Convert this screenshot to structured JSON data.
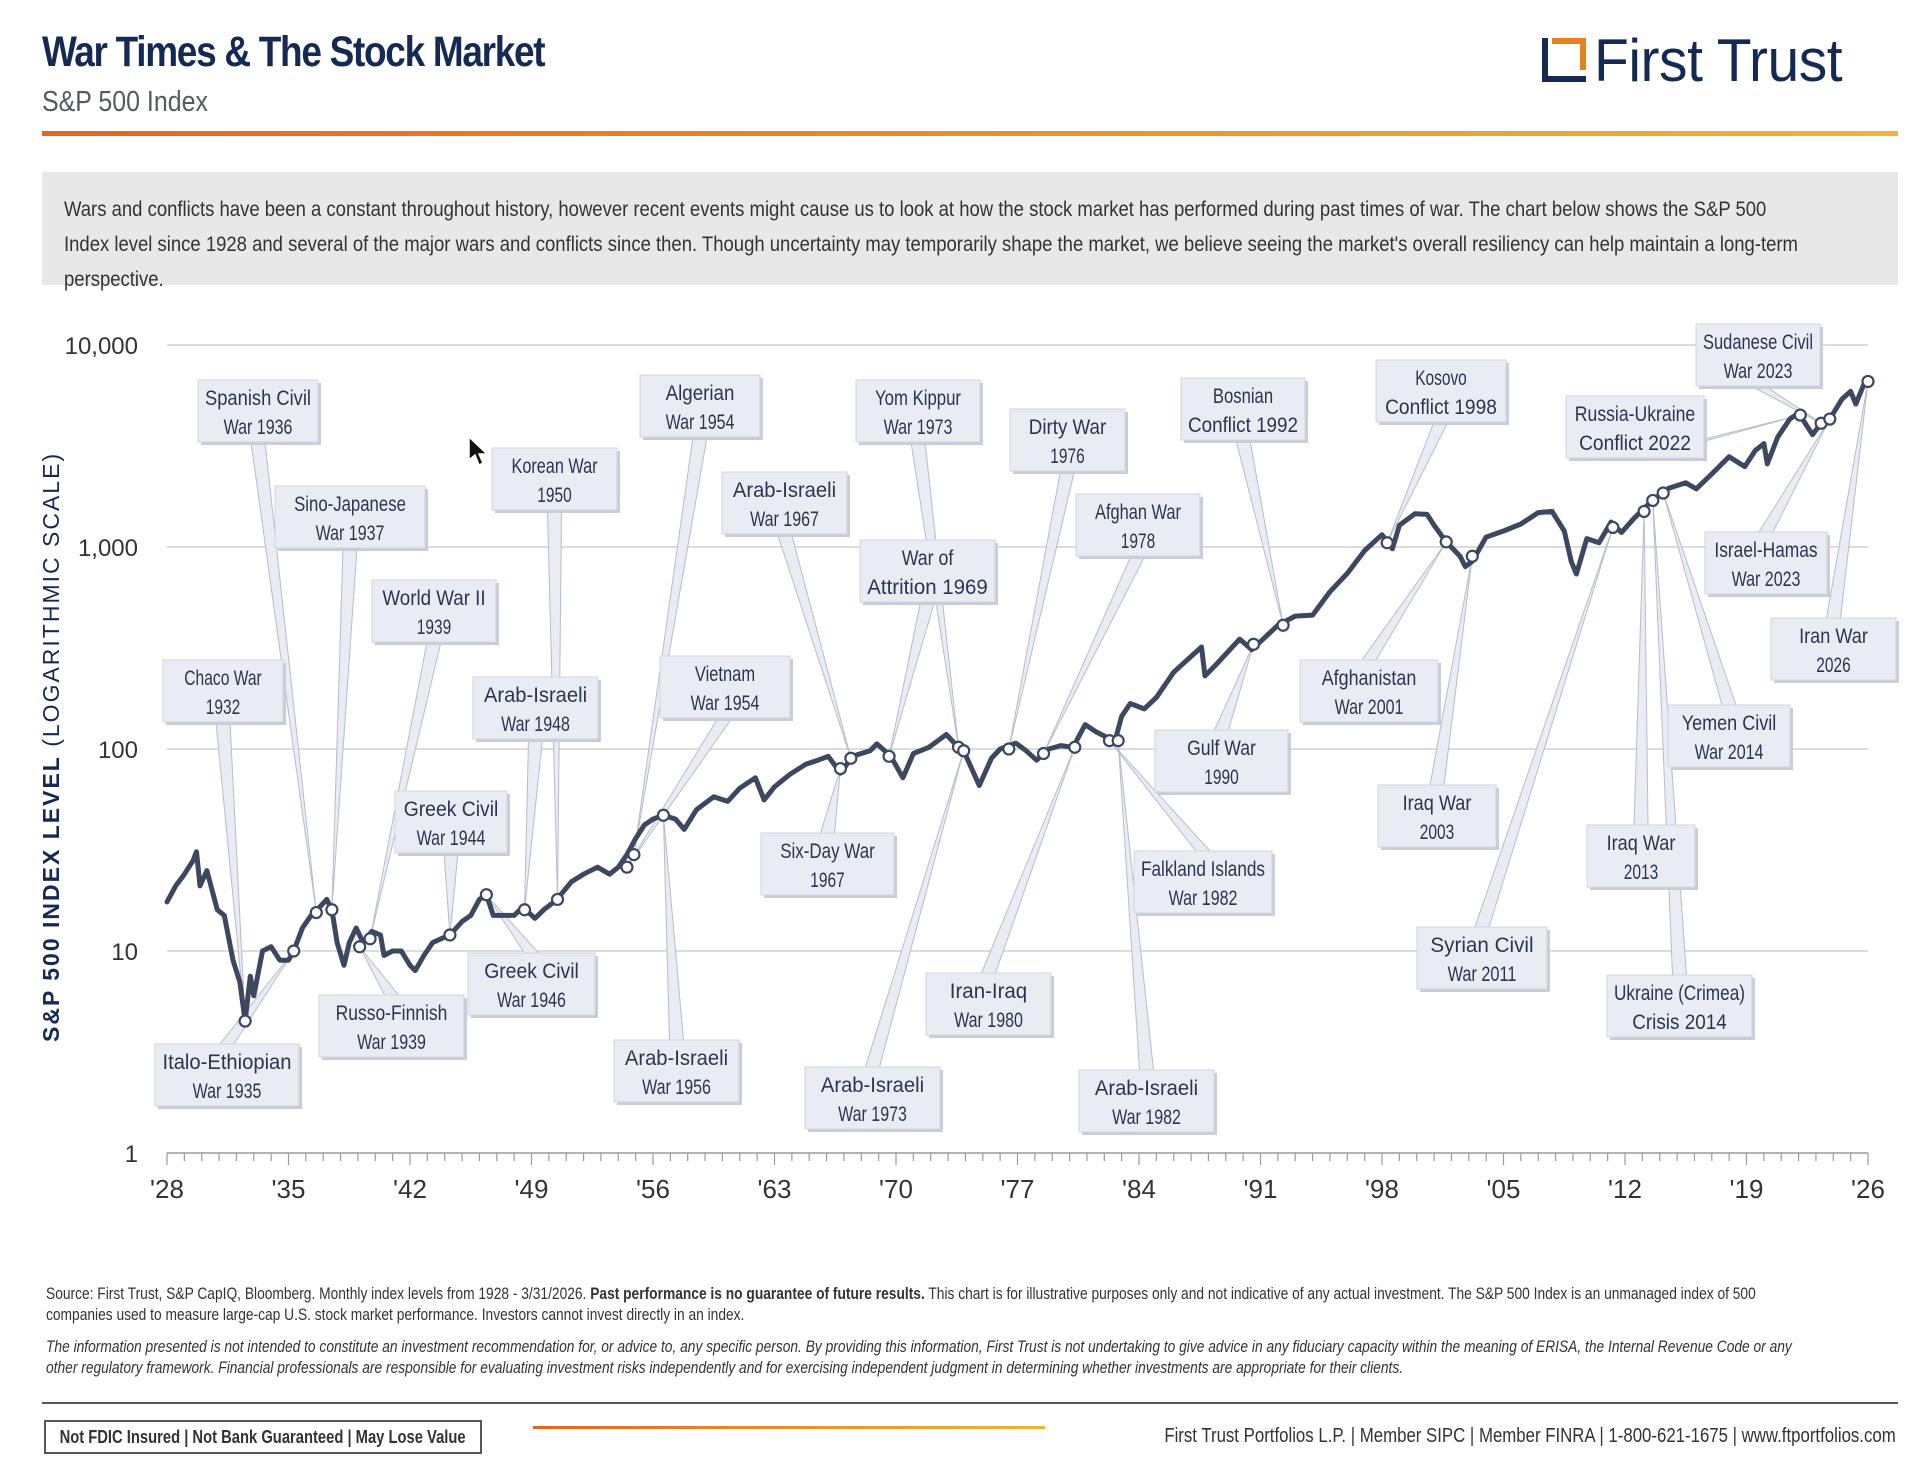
{
  "header": {
    "title": "War Times & The Stock Market",
    "subtitle": "S&P 500 Index",
    "logo_text": "First Trust"
  },
  "intro": "Wars and conflicts have been a constant throughout history, however recent events might cause us to look at how the stock market has performed during past times of war. The chart below shows the S&P 500 Index level since 1928 and several of the major wars and conflicts since then. Though uncertainty may temporarily shape the market, we believe seeing the market's overall resiliency can help maintain a long-term perspective.",
  "colors": {
    "navy": "#152a52",
    "line": "#3b4860",
    "orange": "#e8821e",
    "callout_bg": "#e9ecf3",
    "grid": "#c8c8c8"
  },
  "chart_data": {
    "type": "line",
    "y_scale": "log",
    "ylim": [
      1,
      10000
    ],
    "xlim": [
      1928,
      2026
    ],
    "ylabel_bold": "S&P 500 INDEX LEVEL",
    "ylabel_rest": "(LOGARITHMIC SCALE)",
    "y_ticks": [
      {
        "value": 1,
        "label": "1"
      },
      {
        "value": 10,
        "label": "10"
      },
      {
        "value": 100,
        "label": "100"
      },
      {
        "value": 1000,
        "label": "1,000"
      },
      {
        "value": 10000,
        "label": "10,000"
      }
    ],
    "x_ticks": [
      {
        "value": 1928,
        "label": "'28"
      },
      {
        "value": 1935,
        "label": "'35"
      },
      {
        "value": 1942,
        "label": "'42"
      },
      {
        "value": 1949,
        "label": "'49"
      },
      {
        "value": 1956,
        "label": "'56"
      },
      {
        "value": 1963,
        "label": "'63"
      },
      {
        "value": 1970,
        "label": "'70"
      },
      {
        "value": 1977,
        "label": "'77"
      },
      {
        "value": 1984,
        "label": "'84"
      },
      {
        "value": 1991,
        "label": "'91"
      },
      {
        "value": 1998,
        "label": "'98"
      },
      {
        "value": 2005,
        "label": "'05"
      },
      {
        "value": 2012,
        "label": "'12"
      },
      {
        "value": 2019,
        "label": "'19"
      },
      {
        "value": 2026,
        "label": "'26"
      }
    ],
    "series": [
      {
        "points": [
          [
            1928.0,
            17.5
          ],
          [
            1928.5,
            21
          ],
          [
            1929.0,
            24
          ],
          [
            1929.5,
            28
          ],
          [
            1929.7,
            31
          ],
          [
            1929.9,
            21
          ],
          [
            1930.3,
            25
          ],
          [
            1930.9,
            16
          ],
          [
            1931.3,
            15
          ],
          [
            1931.8,
            9
          ],
          [
            1932.2,
            7
          ],
          [
            1932.5,
            4.5
          ],
          [
            1932.8,
            7.5
          ],
          [
            1933.0,
            6
          ],
          [
            1933.5,
            10
          ],
          [
            1934.0,
            10.5
          ],
          [
            1934.5,
            9
          ],
          [
            1935.0,
            9
          ],
          [
            1935.3,
            10
          ],
          [
            1935.8,
            13
          ],
          [
            1936.3,
            15
          ],
          [
            1936.8,
            16.5
          ],
          [
            1937.2,
            18
          ],
          [
            1937.5,
            16
          ],
          [
            1937.8,
            11
          ],
          [
            1938.2,
            8.5
          ],
          [
            1938.5,
            11
          ],
          [
            1938.9,
            13
          ],
          [
            1939.3,
            11
          ],
          [
            1939.8,
            12.5
          ],
          [
            1940.3,
            12
          ],
          [
            1940.5,
            9.5
          ],
          [
            1941.0,
            10
          ],
          [
            1941.5,
            10
          ],
          [
            1942.0,
            8.5
          ],
          [
            1942.3,
            8
          ],
          [
            1942.8,
            9.5
          ],
          [
            1943.3,
            11
          ],
          [
            1943.8,
            11.5
          ],
          [
            1944.3,
            12
          ],
          [
            1945.0,
            14
          ],
          [
            1945.5,
            15
          ],
          [
            1946.0,
            18
          ],
          [
            1946.4,
            19
          ],
          [
            1946.8,
            15
          ],
          [
            1947.3,
            15
          ],
          [
            1948.0,
            15
          ],
          [
            1948.5,
            16.5
          ],
          [
            1949.2,
            14.5
          ],
          [
            1949.7,
            16
          ],
          [
            1950.3,
            17.5
          ],
          [
            1950.8,
            19.5
          ],
          [
            1951.3,
            22
          ],
          [
            1952.0,
            24
          ],
          [
            1952.8,
            26
          ],
          [
            1953.5,
            24
          ],
          [
            1954.0,
            26
          ],
          [
            1954.5,
            30
          ],
          [
            1955.0,
            36
          ],
          [
            1955.5,
            42
          ],
          [
            1956.0,
            45
          ],
          [
            1956.6,
            47
          ],
          [
            1957.3,
            45
          ],
          [
            1957.8,
            40
          ],
          [
            1958.5,
            50
          ],
          [
            1959.5,
            58
          ],
          [
            1960.3,
            55
          ],
          [
            1961.0,
            64
          ],
          [
            1961.9,
            72
          ],
          [
            1962.4,
            56
          ],
          [
            1963.0,
            65
          ],
          [
            1963.9,
            75
          ],
          [
            1964.8,
            84
          ],
          [
            1965.5,
            88
          ],
          [
            1966.1,
            92
          ],
          [
            1966.8,
            76
          ],
          [
            1967.5,
            92
          ],
          [
            1968.5,
            98
          ],
          [
            1968.9,
            106
          ],
          [
            1969.7,
            92
          ],
          [
            1970.4,
            72
          ],
          [
            1971.0,
            95
          ],
          [
            1971.9,
            102
          ],
          [
            1972.9,
            118
          ],
          [
            1973.5,
            104
          ],
          [
            1973.9,
            98
          ],
          [
            1974.6,
            72
          ],
          [
            1974.8,
            66
          ],
          [
            1975.5,
            90
          ],
          [
            1976.0,
            100
          ],
          [
            1976.9,
            107
          ],
          [
            1977.5,
            98
          ],
          [
            1978.1,
            88
          ],
          [
            1978.8,
            100
          ],
          [
            1979.5,
            104
          ],
          [
            1980.2,
            102
          ],
          [
            1980.9,
            132
          ],
          [
            1981.5,
            122
          ],
          [
            1982.0,
            116
          ],
          [
            1982.6,
            108
          ],
          [
            1983.0,
            145
          ],
          [
            1983.5,
            168
          ],
          [
            1984.3,
            158
          ],
          [
            1985.0,
            180
          ],
          [
            1986.0,
            240
          ],
          [
            1987.6,
            320
          ],
          [
            1987.8,
            230
          ],
          [
            1988.5,
            265
          ],
          [
            1989.8,
            350
          ],
          [
            1990.5,
            310
          ],
          [
            1991.0,
            340
          ],
          [
            1992.0,
            410
          ],
          [
            1993.0,
            455
          ],
          [
            1994.0,
            460
          ],
          [
            1995.0,
            600
          ],
          [
            1996.0,
            740
          ],
          [
            1997.0,
            960
          ],
          [
            1998.0,
            1150
          ],
          [
            1998.6,
            980
          ],
          [
            1999.0,
            1280
          ],
          [
            1999.9,
            1460
          ],
          [
            2000.6,
            1450
          ],
          [
            2001.0,
            1280
          ],
          [
            2001.7,
            1060
          ],
          [
            2002.5,
            900
          ],
          [
            2002.8,
            800
          ],
          [
            2003.2,
            850
          ],
          [
            2004.0,
            1120
          ],
          [
            2005.0,
            1200
          ],
          [
            2006.0,
            1300
          ],
          [
            2007.0,
            1480
          ],
          [
            2007.8,
            1500
          ],
          [
            2008.5,
            1200
          ],
          [
            2008.9,
            850
          ],
          [
            2009.2,
            735
          ],
          [
            2009.8,
            1100
          ],
          [
            2010.5,
            1050
          ],
          [
            2011.2,
            1330
          ],
          [
            2011.8,
            1180
          ],
          [
            2012.5,
            1380
          ],
          [
            2013.5,
            1680
          ],
          [
            2014.5,
            1950
          ],
          [
            2015.5,
            2080
          ],
          [
            2016.1,
            1940
          ],
          [
            2017.0,
            2300
          ],
          [
            2018.0,
            2800
          ],
          [
            2018.9,
            2500
          ],
          [
            2019.5,
            3000
          ],
          [
            2020.0,
            3250
          ],
          [
            2020.2,
            2580
          ],
          [
            2020.8,
            3500
          ],
          [
            2021.5,
            4300
          ],
          [
            2022.0,
            4600
          ],
          [
            2022.8,
            3600
          ],
          [
            2023.3,
            4100
          ],
          [
            2023.8,
            4300
          ],
          [
            2024.5,
            5400
          ],
          [
            2025.0,
            5900
          ],
          [
            2025.3,
            5100
          ],
          [
            2025.8,
            6500
          ],
          [
            2026.0,
            6600
          ]
        ]
      }
    ],
    "annotations": [
      {
        "label": "Chaco War\n1932",
        "x": 1932.5,
        "y": 4.5
      },
      {
        "label": "Spanish Civil\nWar 1936",
        "x": 1936.6,
        "y": 15.5
      },
      {
        "label": "Sino-Japanese\nWar 1937",
        "x": 1937.5,
        "y": 16
      },
      {
        "label": "Italo-Ethiopian\nWar 1935",
        "x": 1935.3,
        "y": 10
      },
      {
        "label": "World War II\n1939",
        "x": 1939.7,
        "y": 11.5
      },
      {
        "label": "Russo-Finnish\nWar 1939",
        "x": 1939.1,
        "y": 10.5
      },
      {
        "label": "Greek Civil\nWar 1944",
        "x": 1944.3,
        "y": 12
      },
      {
        "label": "Greek Civil\nWar 1946",
        "x": 1946.4,
        "y": 19
      },
      {
        "label": "Korean War\n1950",
        "x": 1950.5,
        "y": 18
      },
      {
        "label": "Arab-Israeli\nWar 1948",
        "x": 1948.6,
        "y": 16
      },
      {
        "label": "Algerian\nWar 1954",
        "x": 1954.9,
        "y": 30
      },
      {
        "label": "Vietnam\nWar 1954",
        "x": 1954.5,
        "y": 26
      },
      {
        "label": "Arab-Israeli\nWar 1956",
        "x": 1956.6,
        "y": 47
      },
      {
        "label": "Arab-Israeli\nWar 1967",
        "x": 1967.4,
        "y": 90
      },
      {
        "label": "Six-Day War\n1967",
        "x": 1966.8,
        "y": 80
      },
      {
        "label": "Yom Kippur\nWar 1973",
        "x": 1973.6,
        "y": 102
      },
      {
        "label": "War of\nAttrition 1969",
        "x": 1969.6,
        "y": 92
      },
      {
        "label": "Arab-Israeli\nWar 1973",
        "x": 1973.9,
        "y": 98
      },
      {
        "label": "Dirty War\n1976",
        "x": 1976.5,
        "y": 100
      },
      {
        "label": "Afghan War\n1978",
        "x": 1978.5,
        "y": 95
      },
      {
        "label": "Iran-Iraq\nWar 1980",
        "x": 1980.3,
        "y": 102
      },
      {
        "label": "Falkland Islands\nWar 1982",
        "x": 1982.3,
        "y": 110
      },
      {
        "label": "Arab-Israeli\nWar 1982",
        "x": 1982.8,
        "y": 110
      },
      {
        "label": "Bosnian\nConflict 1992",
        "x": 1992.3,
        "y": 410
      },
      {
        "label": "Gulf War\n1990",
        "x": 1990.6,
        "y": 330
      },
      {
        "label": "Kosovo\nConflict 1998",
        "x": 1998.3,
        "y": 1050
      },
      {
        "label": "Afghanistan\nWar 2001",
        "x": 2001.7,
        "y": 1060
      },
      {
        "label": "Iraq War\n2003",
        "x": 2003.2,
        "y": 900
      },
      {
        "label": "Syrian Civil\nWar 2011",
        "x": 2011.3,
        "y": 1250
      },
      {
        "label": "Iraq War\n2013",
        "x": 2013.1,
        "y": 1500
      },
      {
        "label": "Ukraine (Crimea)\nCrisis 2014",
        "x": 2013.6,
        "y": 1700
      },
      {
        "label": "Yemen Civil\nWar 2014",
        "x": 2014.2,
        "y": 1850
      },
      {
        "label": "Russia-Ukraine\nConflict 2022",
        "x": 2022.1,
        "y": 4500
      },
      {
        "label": "Sudanese Civil\nWar 2023",
        "x": 2023.3,
        "y": 4100
      },
      {
        "label": "Israel-Hamas\nWar 2023",
        "x": 2023.8,
        "y": 4300
      },
      {
        "label": "Iran War\n2026",
        "x": 2026.0,
        "y": 6600
      }
    ]
  },
  "footer": {
    "source_prefix": "Source: First Trust, S&P CapIQ, Bloomberg. Monthly index levels from 1928 - 3/31/2026. ",
    "source_bold": "Past performance is no guarantee of future results.",
    "source_suffix": " This chart is for illustrative purposes only and not indicative of any actual investment. The S&P 500 Index is an unmanaged index of 500 companies used to measure large-cap U.S. stock market performance. Investors cannot invest directly in an index.",
    "disclaimer": "The information presented is not intended to constitute an investment recommendation for, or advice to, any specific person. By providing this information, First Trust is not undertaking to give advice in any fiduciary capacity within the meaning of ERISA, the Internal Revenue Code or any other regulatory framework. Financial professionals are responsible for evaluating investment risks independently and for exercising independent judgment in determining whether investments are appropriate for their clients.",
    "badge": "Not FDIC Insured | Not Bank Guaranteed | May Lose Value",
    "contact": "First Trust Portfolios L.P. | Member SIPC | Member FINRA | 1-800-621-1675 | www.ftportfolios.com"
  }
}
